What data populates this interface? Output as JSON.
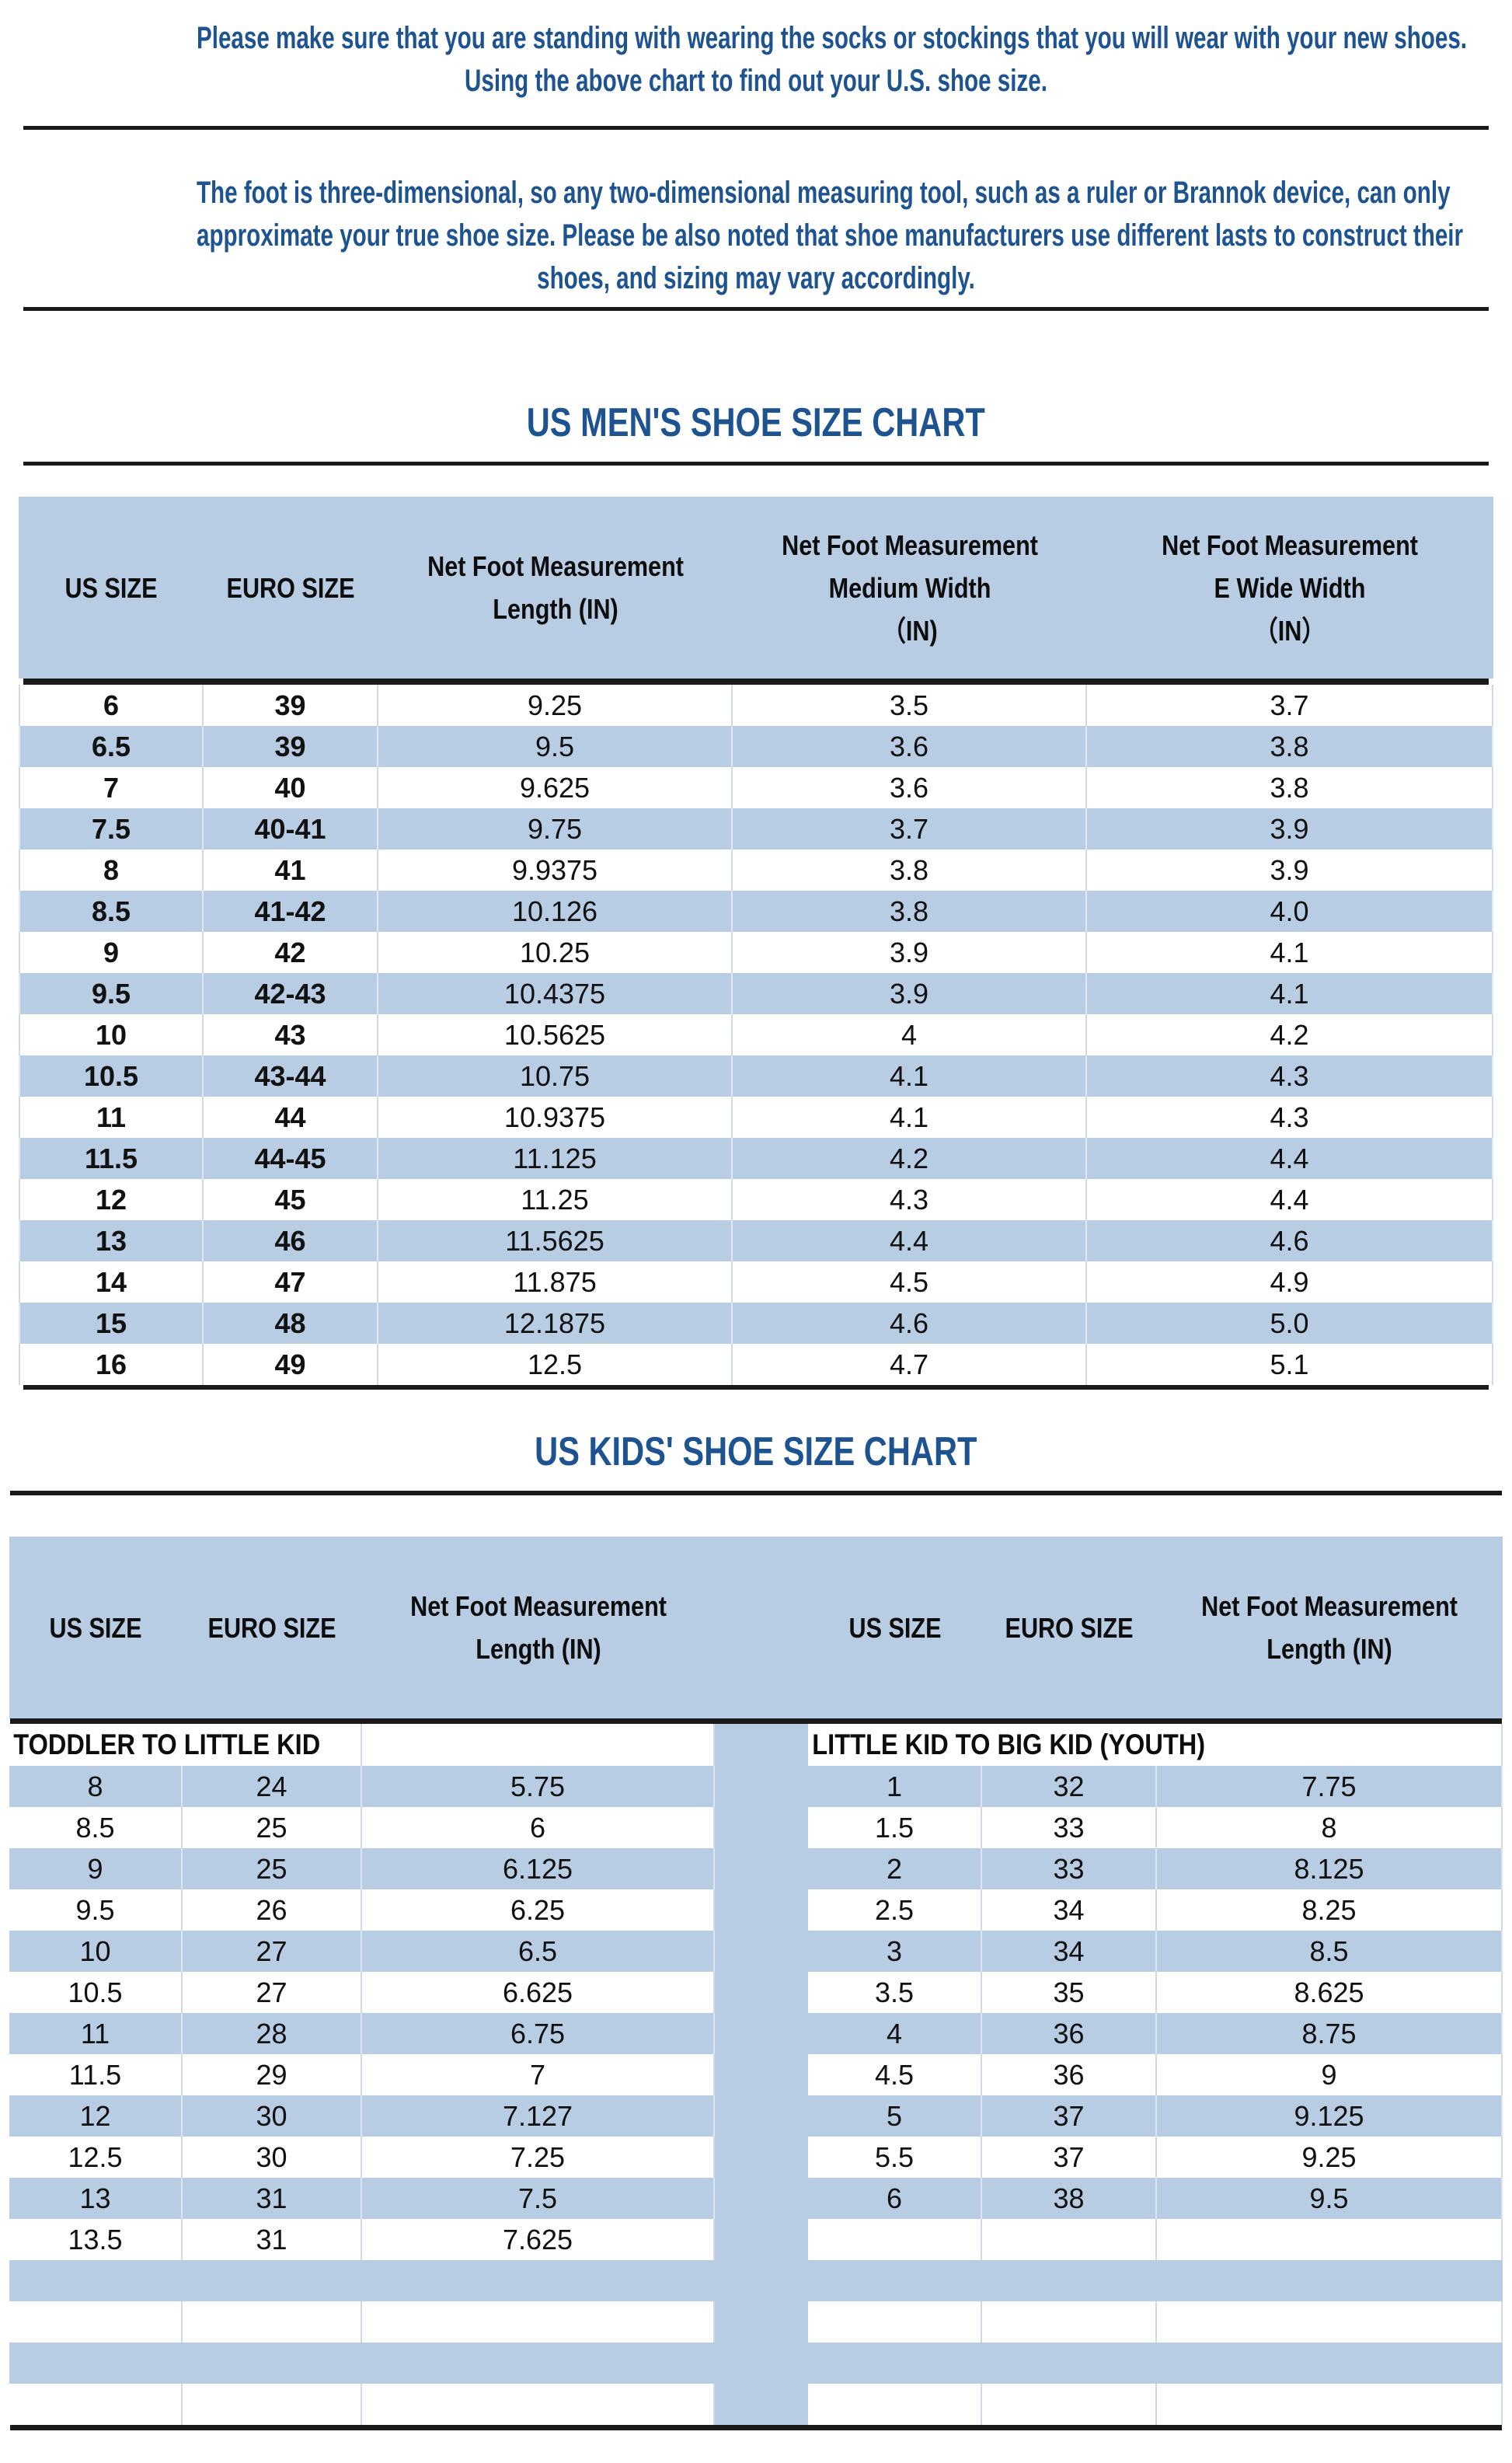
{
  "colors": {
    "band_blue": "#b8cce4",
    "navy_text": "#1d5391",
    "rule_dark": "#1a1a1a",
    "cell_border": "#d3d9e0"
  },
  "intro": {
    "para1_lines": [
      "Please make sure that you are standing with wearing the socks or stockings that you will wear with your new shoes.",
      "Using the above chart to find out your U.S. shoe size."
    ],
    "para2_lines": [
      "The foot is three-dimensional, so any two-dimensional measuring tool, such as a ruler or Brannok device, can only",
      "approximate your true shoe size. Please be also noted that shoe manufacturers use different lasts to construct their",
      "shoes, and sizing may vary accordingly."
    ]
  },
  "mens": {
    "title": "US MEN'S SHOE SIZE CHART",
    "headers": [
      "US SIZE",
      "EURO SIZE",
      "Net Foot Measurement\nLength (IN)",
      "Net Foot Measurement\nMedium Width\n（IN)",
      "Net Foot Measurement\nE Wide Width\n（IN）"
    ],
    "rows": [
      [
        "6",
        "39",
        "9.25",
        "3.5",
        "3.7"
      ],
      [
        "6.5",
        "39",
        "9.5",
        "3.6",
        "3.8"
      ],
      [
        "7",
        "40",
        "9.625",
        "3.6",
        "3.8"
      ],
      [
        "7.5",
        "40-41",
        "9.75",
        "3.7",
        "3.9"
      ],
      [
        "8",
        "41",
        "9.9375",
        "3.8",
        "3.9"
      ],
      [
        "8.5",
        "41-42",
        "10.126",
        "3.8",
        "4.0"
      ],
      [
        "9",
        "42",
        "10.25",
        "3.9",
        "4.1"
      ],
      [
        "9.5",
        "42-43",
        "10.4375",
        "3.9",
        "4.1"
      ],
      [
        "10",
        "43",
        "10.5625",
        "4",
        "4.2"
      ],
      [
        "10.5",
        "43-44",
        "10.75",
        "4.1",
        "4.3"
      ],
      [
        "11",
        "44",
        "10.9375",
        "4.1",
        "4.3"
      ],
      [
        "11.5",
        "44-45",
        "11.125",
        "4.2",
        "4.4"
      ],
      [
        "12",
        "45",
        "11.25",
        "4.3",
        "4.4"
      ],
      [
        "13",
        "46",
        "11.5625",
        "4.4",
        "4.6"
      ],
      [
        "14",
        "47",
        "11.875",
        "4.5",
        "4.9"
      ],
      [
        "15",
        "48",
        "12.1875",
        "4.6",
        "5.0"
      ],
      [
        "16",
        "49",
        "12.5",
        "4.7",
        "5.1"
      ]
    ]
  },
  "kids": {
    "title": "US KIDS' SHOE SIZE CHART",
    "headers": [
      "US SIZE",
      "EURO SIZE",
      "Net Foot Measurement\nLength (IN)",
      "US SIZE",
      "EURO SIZE",
      "Net Foot Measurement\nLength (IN)"
    ],
    "left_section_label": "TODDLER TO LITTLE KID",
    "right_section_label": "LITTLE KID TO BIG KID (YOUTH)",
    "rows": [
      {
        "l": [
          "8",
          "24",
          "5.75"
        ],
        "r": [
          "1",
          "32",
          "7.75"
        ]
      },
      {
        "l": [
          "8.5",
          "25",
          "6"
        ],
        "r": [
          "1.5",
          "33",
          "8"
        ]
      },
      {
        "l": [
          "9",
          "25",
          "6.125"
        ],
        "r": [
          "2",
          "33",
          "8.125"
        ]
      },
      {
        "l": [
          "9.5",
          "26",
          "6.25"
        ],
        "r": [
          "2.5",
          "34",
          "8.25"
        ]
      },
      {
        "l": [
          "10",
          "27",
          "6.5"
        ],
        "r": [
          "3",
          "34",
          "8.5"
        ]
      },
      {
        "l": [
          "10.5",
          "27",
          "6.625"
        ],
        "r": [
          "3.5",
          "35",
          "8.625"
        ]
      },
      {
        "l": [
          "11",
          "28",
          "6.75"
        ],
        "r": [
          "4",
          "36",
          "8.75"
        ]
      },
      {
        "l": [
          "11.5",
          "29",
          "7"
        ],
        "r": [
          "4.5",
          "36",
          "9"
        ]
      },
      {
        "l": [
          "12",
          "30",
          "7.127"
        ],
        "r": [
          "5",
          "37",
          "9.125"
        ]
      },
      {
        "l": [
          "12.5",
          "30",
          "7.25"
        ],
        "r": [
          "5.5",
          "37",
          "9.25"
        ]
      },
      {
        "l": [
          "13",
          "31",
          "7.5"
        ],
        "r": [
          "6",
          "38",
          "9.5"
        ]
      },
      {
        "l": [
          "13.5",
          "31",
          "7.625"
        ],
        "r": [
          "",
          "",
          ""
        ]
      }
    ],
    "trailing_empty_rows": 4
  }
}
